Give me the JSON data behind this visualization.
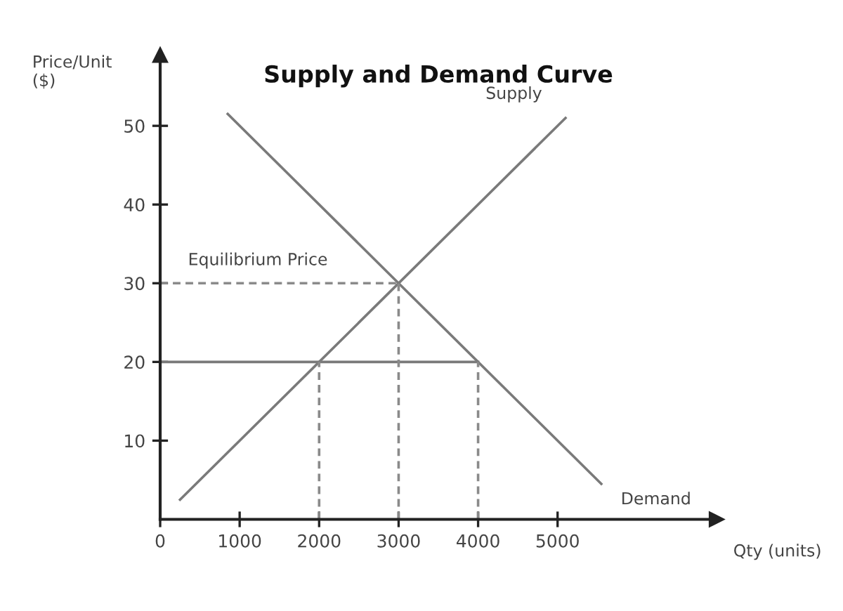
{
  "chart_data": {
    "type": "line",
    "title": "Supply and Demand Curve",
    "xlabel": "Qty (units)",
    "ylabel": "Price/Unit\n($)",
    "xlim": [
      0,
      7000
    ],
    "ylim": [
      0,
      59
    ],
    "xticks": [
      {
        "value": 0,
        "label": "0"
      },
      1000,
      2000,
      3000,
      4000,
      5000
    ],
    "yticks": [
      10,
      20,
      30,
      40,
      50
    ],
    "grid": false,
    "legend": false,
    "marker": "none",
    "line_style": "solid",
    "series": [
      {
        "name": "Supply",
        "x": [
          250,
          5100
        ],
        "values": [
          2.5,
          51
        ],
        "color": "#7a7a7a"
      },
      {
        "name": "Demand",
        "x": [
          850,
          5550
        ],
        "values": [
          51.5,
          4.5
        ],
        "color": "#7a7a7a"
      },
      {
        "x": [
          0,
          4000
        ],
        "values": [
          20,
          20
        ],
        "color": "#7a7a7a"
      },
      {
        "x": [
          0,
          3000
        ],
        "values": [
          30,
          30
        ],
        "color": "#8a8a8a",
        "line_style": "dashed"
      },
      {
        "x": [
          2000,
          2000
        ],
        "values": [
          0,
          20
        ],
        "color": "#8a8a8a",
        "line_style": "dashed"
      },
      {
        "x": [
          3000,
          3000
        ],
        "values": [
          0,
          30
        ],
        "color": "#8a8a8a",
        "line_style": "dashed"
      },
      {
        "x": [
          4000,
          4000
        ],
        "values": [
          0,
          20
        ],
        "color": "#8a8a8a",
        "line_style": "dashed"
      }
    ],
    "annotations": [
      "Equilibrium Price"
    ]
  }
}
